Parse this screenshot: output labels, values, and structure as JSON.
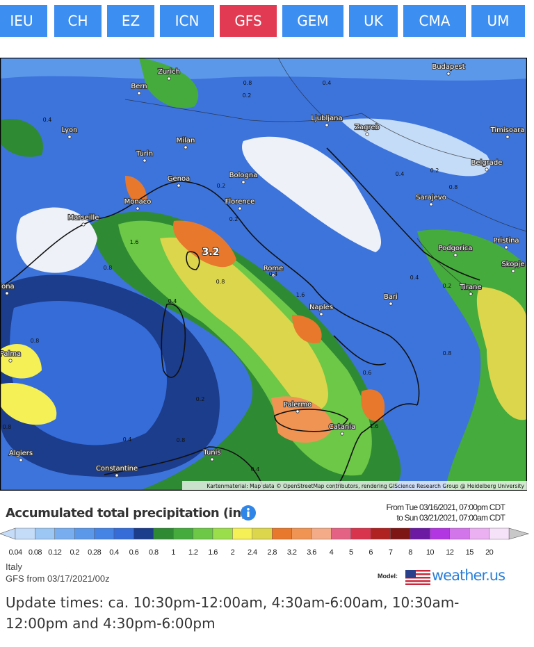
{
  "tabs": [
    "IEU",
    "CH",
    "EZ",
    "ICN",
    "GFS",
    "GEM",
    "UK",
    "CMA",
    "UM"
  ],
  "active_tab": 4,
  "map": {
    "places": [
      "Budapest",
      "Zurich",
      "Bern",
      "Lyon",
      "Milan",
      "Turin",
      "Ljubljana",
      "Zagreb",
      "Timisoara",
      "Belgrade",
      "Genoa",
      "Bologna",
      "Monaco",
      "Marseille",
      "Florence",
      "Sarajevo",
      "Pristina",
      "Podgorica",
      "Skopje",
      "Rome",
      "lona",
      "Tirane",
      "Bari",
      "Naples",
      "Palma",
      "Palermo",
      "Catania",
      "Algiers",
      "Tunis",
      "Constantine"
    ],
    "contour_labels": [
      "0.8",
      "0.2",
      "0.4",
      "0.4",
      "0.2",
      "0.2",
      "1.6",
      "3.2",
      "0.8",
      "0.8",
      "0.4",
      "0.4",
      "0.2",
      "1.6",
      "0.4",
      "0.8",
      "0.8",
      "0.2",
      "0.6",
      "1.6",
      "0.4",
      "0.8",
      "0.8",
      "0.4",
      "0.2",
      "0.4",
      "0.8"
    ],
    "attribution": "Kartenmaterial: Map data © OpenStreetMap contributors, rendering GIScience Research Group @ Heidelberg University"
  },
  "legend": {
    "title": "Accumulated total precipitation (in)",
    "period": [
      "From Tue 03/16/2021, 07:00pm CDT",
      "to Sun 03/21/2021, 07:00am CDT"
    ],
    "items": [
      {
        "label": "0.04",
        "color": "#c4dcf8"
      },
      {
        "label": "0.08",
        "color": "#9cc6f4"
      },
      {
        "label": "0.12",
        "color": "#78aef0"
      },
      {
        "label": "0.2",
        "color": "#5c98ea"
      },
      {
        "label": "0.28",
        "color": "#4583e4"
      },
      {
        "label": "0.4",
        "color": "#356cd8"
      },
      {
        "label": "0.6",
        "color": "#1c3c8c"
      },
      {
        "label": "0.8",
        "color": "#2f8a34"
      },
      {
        "label": "1",
        "color": "#45ab3c"
      },
      {
        "label": "1.2",
        "color": "#6cc846"
      },
      {
        "label": "1.6",
        "color": "#9ade4c"
      },
      {
        "label": "2",
        "color": "#f4f056"
      },
      {
        "label": "2.4",
        "color": "#dcd64c"
      },
      {
        "label": "2.8",
        "color": "#e8782c"
      },
      {
        "label": "3.2",
        "color": "#f09454"
      },
      {
        "label": "3.6",
        "color": "#f4ac88"
      },
      {
        "label": "4",
        "color": "#e46284"
      },
      {
        "label": "5",
        "color": "#d8344e"
      },
      {
        "label": "6",
        "color": "#b02222"
      },
      {
        "label": "7",
        "color": "#7e1616"
      },
      {
        "label": "8",
        "color": "#6c1aa4"
      },
      {
        "label": "10",
        "color": "#b236e2"
      },
      {
        "label": "12",
        "color": "#d274ea"
      },
      {
        "label": "15",
        "color": "#eab0f2"
      },
      {
        "label": "20",
        "color": "#f6e2f8"
      }
    ]
  },
  "footer": {
    "region": "Italy",
    "model_run": "GFS from 03/17/2021/00z",
    "model_label": "Model:",
    "brand": "weather.us"
  },
  "update_times": "Update times: ca. 10:30pm-12:00am, 4:30am-6:00am, 10:30am-12:00pm and 4:30pm-6:00pm"
}
